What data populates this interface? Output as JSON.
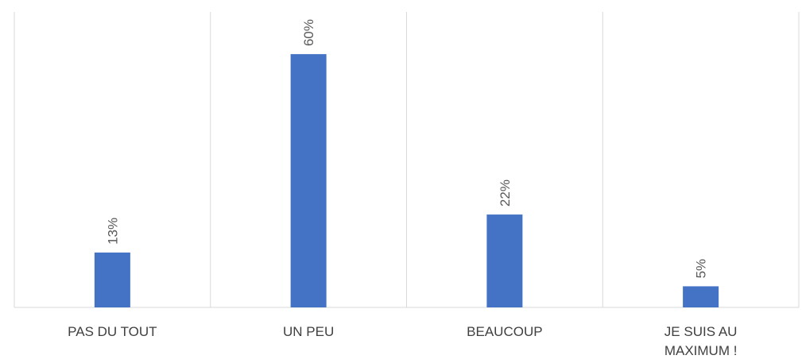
{
  "chart_data": {
    "type": "bar",
    "categories": [
      "PAS DU TOUT",
      "UN PEU",
      "BEAUCOUP",
      "JE SUIS AU MAXIMUM !"
    ],
    "values": [
      13,
      60,
      22,
      5
    ],
    "value_labels": [
      "13%",
      "60%",
      "22%",
      "5%"
    ],
    "color": "#4472c4",
    "ylim": [
      0,
      70
    ]
  }
}
